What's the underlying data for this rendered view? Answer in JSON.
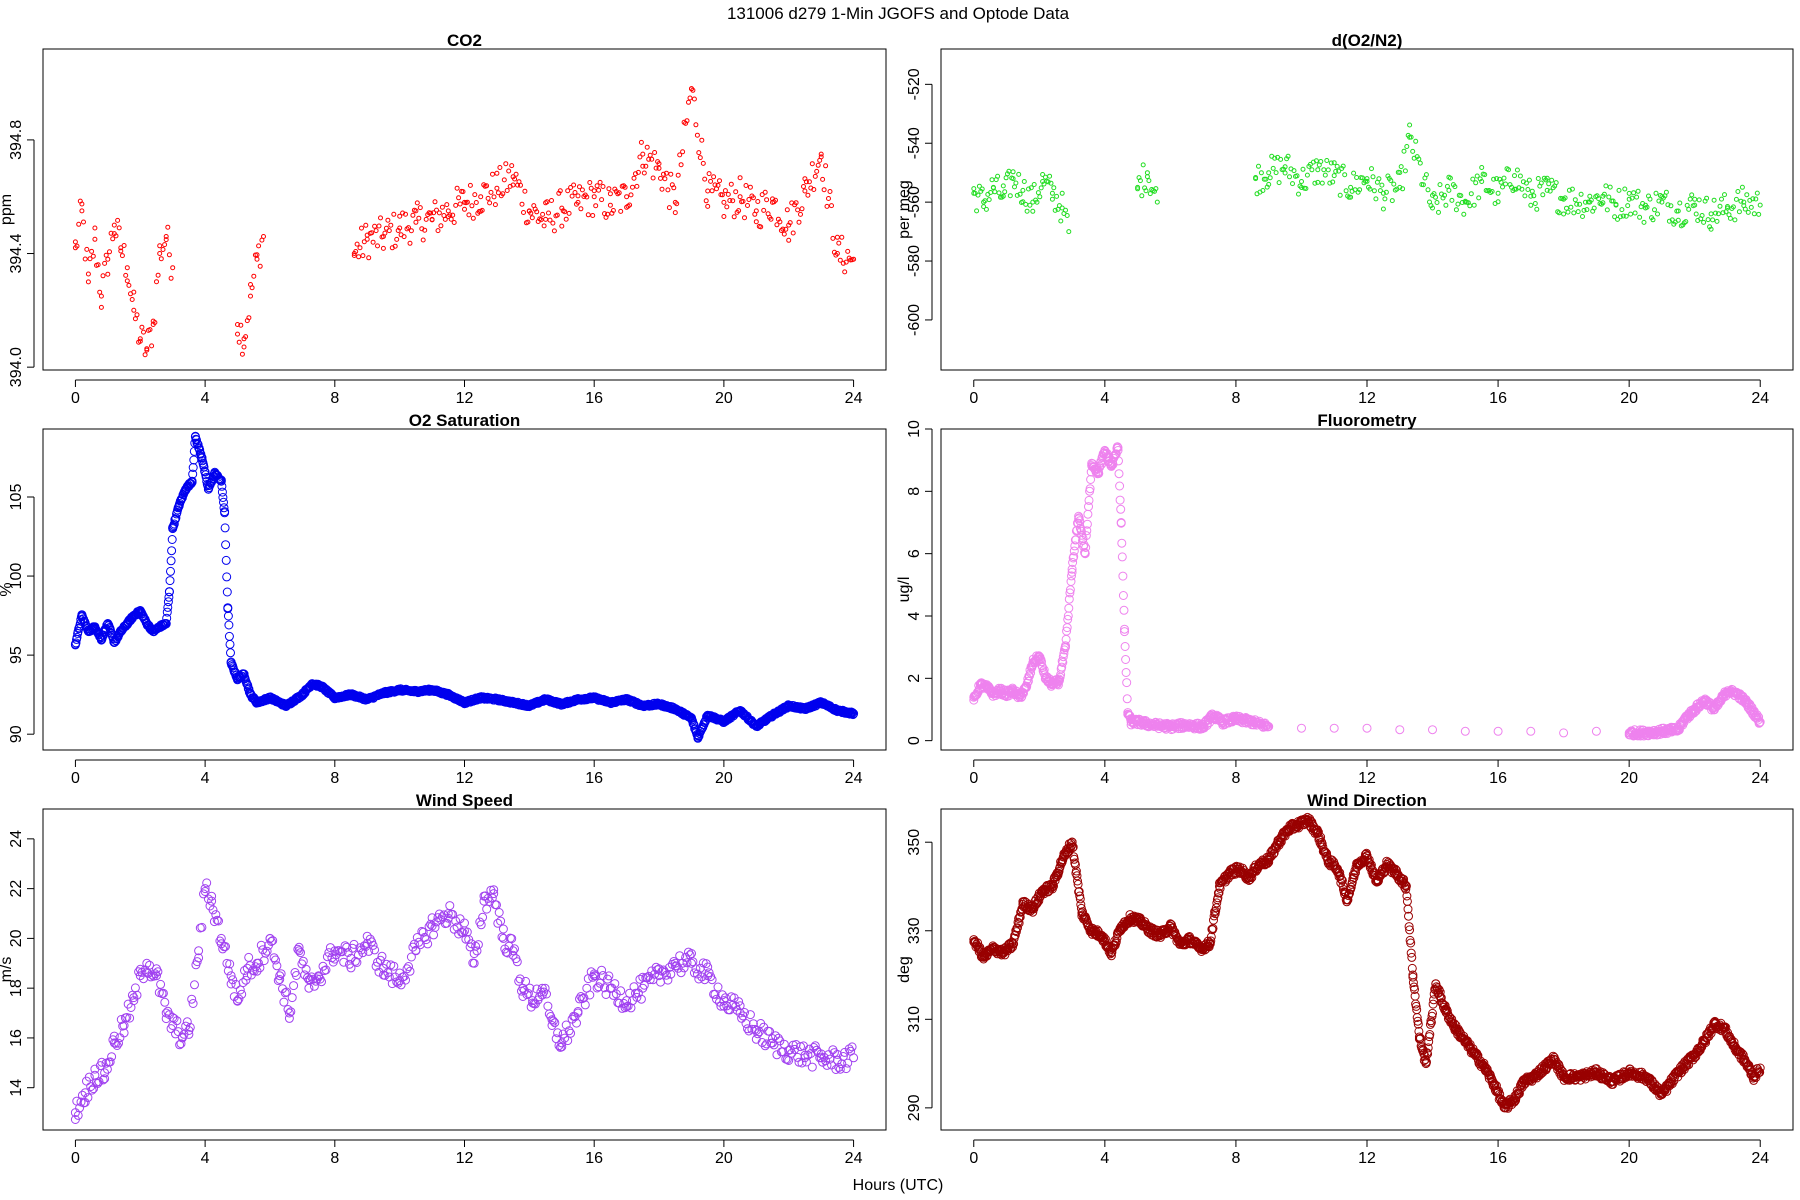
{
  "figure_title": "131006   d279   1-Min  JGOFS and Optode Data",
  "x_label": "Hours (UTC)",
  "chart_data": [
    {
      "id": "co2",
      "type": "scatter",
      "title": "CO2",
      "ylabel": "ppm",
      "color": "#ff0000",
      "xlim": [
        -1,
        25
      ],
      "ylim": [
        393.99,
        395.12
      ],
      "x_ticks": [
        0,
        4,
        8,
        12,
        16,
        20,
        24
      ],
      "y_ticks": [
        394.0,
        394.4,
        394.8
      ],
      "y_tick_labels": [
        "394.0",
        "394.4",
        "394.8"
      ],
      "series": [
        {
          "name": "CO2",
          "x": [
            0.0,
            0.2,
            0.4,
            0.6,
            0.8,
            1.0,
            1.2,
            1.4,
            1.6,
            1.8,
            2.0,
            2.2,
            2.4,
            2.6,
            2.8,
            3.0,
            5.0,
            5.2,
            5.4,
            5.6,
            5.8,
            8.6,
            9.0,
            9.5,
            10.0,
            10.5,
            11.0,
            11.5,
            12.0,
            12.5,
            13.0,
            13.5,
            14.0,
            14.5,
            15.0,
            15.5,
            16.0,
            16.5,
            17.0,
            17.5,
            18.0,
            18.5,
            19.0,
            19.5,
            20.0,
            20.5,
            21.0,
            21.5,
            22.0,
            22.5,
            23.0,
            23.5,
            24.0
          ],
          "y": [
            394.42,
            394.55,
            394.3,
            394.45,
            394.25,
            394.38,
            394.5,
            394.42,
            394.35,
            394.2,
            394.1,
            394.06,
            394.15,
            394.4,
            394.46,
            394.35,
            394.15,
            394.1,
            394.25,
            394.38,
            394.46,
            394.4,
            394.45,
            394.46,
            394.49,
            394.51,
            394.52,
            394.55,
            394.58,
            394.6,
            394.63,
            394.67,
            394.55,
            394.52,
            394.56,
            394.58,
            394.6,
            394.57,
            394.6,
            394.75,
            394.7,
            394.58,
            394.98,
            394.62,
            394.58,
            394.6,
            394.55,
            394.58,
            394.5,
            394.62,
            394.75,
            394.4,
            394.38
          ]
        }
      ]
    },
    {
      "id": "do2n2",
      "type": "scatter",
      "title": "d(O2/N2)",
      "ylabel": "per meg",
      "color": "#22dd22",
      "xlim": [
        -1,
        25
      ],
      "ylim": [
        -617,
        -508
      ],
      "x_ticks": [
        0,
        4,
        8,
        12,
        16,
        20,
        24
      ],
      "y_ticks": [
        -520,
        -540,
        -560,
        -580,
        -600
      ],
      "y_tick_labels": [
        "-520",
        "-540",
        "-560",
        "-580",
        "-600"
      ],
      "series": [
        {
          "name": "d(O2/N2)",
          "x": [
            0.0,
            0.3,
            0.6,
            0.9,
            1.2,
            1.5,
            1.8,
            2.1,
            2.4,
            2.7,
            2.9,
            5.0,
            5.3,
            5.6,
            8.6,
            9.0,
            9.5,
            10.0,
            10.5,
            11.0,
            11.5,
            12.0,
            12.5,
            13.0,
            13.3,
            14.0,
            14.5,
            15.0,
            15.5,
            16.0,
            16.5,
            17.0,
            17.5,
            18.0,
            18.8,
            19.2,
            19.6,
            20.0,
            20.5,
            21.0,
            21.5,
            22.0,
            22.5,
            23.0,
            23.5,
            24.0
          ],
          "y": [
            -557,
            -560,
            -555,
            -558,
            -552,
            -556,
            -560,
            -553,
            -557,
            -562,
            -570,
            -555,
            -550,
            -560,
            -552,
            -550,
            -548,
            -553,
            -549,
            -551,
            -555,
            -552,
            -557,
            -555,
            -538,
            -562,
            -556,
            -560,
            -553,
            -557,
            -551,
            -558,
            -556,
            -559,
            -560,
            -558,
            -561,
            -559,
            -562,
            -560,
            -563,
            -561,
            -564,
            -562,
            -560,
            -561
          ]
        }
      ]
    },
    {
      "id": "o2sat",
      "type": "scatter",
      "title": "O2 Saturation",
      "ylabel": "%",
      "color": "#0000ee",
      "xlim": [
        -1,
        25
      ],
      "ylim": [
        89.0,
        109.3
      ],
      "x_ticks": [
        0,
        4,
        8,
        12,
        16,
        20,
        24
      ],
      "y_ticks": [
        90,
        95,
        100,
        105
      ],
      "y_tick_labels": [
        "90",
        "95",
        "100",
        "105"
      ],
      "series": [
        {
          "name": "O2 Saturation",
          "x": [
            0.0,
            0.2,
            0.4,
            0.6,
            0.8,
            1.0,
            1.2,
            1.4,
            1.6,
            1.8,
            2.0,
            2.2,
            2.4,
            2.6,
            2.8,
            2.9,
            3.0,
            3.2,
            3.4,
            3.6,
            3.7,
            3.9,
            4.1,
            4.3,
            4.5,
            4.6,
            4.7,
            4.8,
            5.0,
            5.2,
            5.4,
            5.6,
            6.0,
            6.5,
            7.0,
            7.3,
            7.6,
            8.0,
            8.5,
            9.0,
            9.5,
            10.0,
            10.5,
            11.0,
            11.5,
            12.0,
            12.5,
            13.0,
            13.5,
            14.0,
            14.5,
            15.0,
            15.5,
            16.0,
            16.5,
            17.0,
            17.5,
            18.0,
            18.5,
            19.0,
            19.2,
            19.5,
            20.0,
            20.5,
            21.0,
            21.5,
            22.0,
            22.5,
            23.0,
            23.5,
            24.0
          ],
          "y": [
            95.7,
            97.5,
            96.5,
            96.8,
            96.0,
            97.0,
            95.8,
            96.5,
            97.0,
            97.5,
            97.8,
            97.0,
            96.5,
            96.8,
            97.0,
            99.0,
            103.0,
            104.5,
            105.5,
            106.0,
            108.8,
            107.5,
            105.5,
            106.5,
            106.0,
            104.0,
            98.0,
            94.5,
            93.5,
            93.8,
            92.5,
            92.0,
            92.3,
            91.8,
            92.5,
            93.2,
            93.0,
            92.3,
            92.5,
            92.2,
            92.6,
            92.8,
            92.7,
            92.8,
            92.5,
            92.0,
            92.3,
            92.2,
            92.0,
            91.8,
            92.2,
            91.9,
            92.2,
            92.3,
            92.0,
            92.2,
            91.8,
            91.9,
            91.6,
            91.0,
            89.8,
            91.2,
            90.8,
            91.5,
            90.5,
            91.2,
            91.8,
            91.6,
            92.0,
            91.5,
            91.3
          ]
        }
      ]
    },
    {
      "id": "fluor",
      "type": "scatter",
      "title": "Fluorometry",
      "ylabel": "ug/l",
      "color": "#ee82ee",
      "xlim": [
        -1,
        25
      ],
      "ylim": [
        -0.3,
        10.0
      ],
      "x_ticks": [
        0,
        4,
        8,
        12,
        16,
        20,
        24
      ],
      "y_ticks": [
        0,
        2,
        4,
        6,
        8,
        10
      ],
      "y_tick_labels": [
        "0",
        "2",
        "4",
        "6",
        "8",
        "10"
      ],
      "series": [
        {
          "name": "Fluorometry",
          "x": [
            0.0,
            0.2,
            0.4,
            0.6,
            0.8,
            1.0,
            1.2,
            1.4,
            1.6,
            1.8,
            2.0,
            2.2,
            2.4,
            2.6,
            2.8,
            3.0,
            3.2,
            3.4,
            3.6,
            3.8,
            4.0,
            4.2,
            4.4,
            4.5,
            4.6,
            4.7,
            4.8,
            5.0,
            5.5,
            6.0,
            6.5,
            7.0,
            7.3,
            7.6,
            8.0,
            8.5,
            9.0,
            10.0,
            11.0,
            12.0,
            13.0,
            14.0,
            15.0,
            16.0,
            17.0,
            18.0,
            19.0,
            20.0,
            20.5,
            21.0,
            21.5,
            21.7,
            22.0,
            22.3,
            22.6,
            23.0,
            23.3,
            23.6,
            23.8,
            24.0
          ],
          "y": [
            1.3,
            1.8,
            1.7,
            1.5,
            1.6,
            1.5,
            1.6,
            1.4,
            1.7,
            2.5,
            2.7,
            2.0,
            1.8,
            1.9,
            3.0,
            5.5,
            7.2,
            6.0,
            8.9,
            8.6,
            9.3,
            8.8,
            9.4,
            7.0,
            3.5,
            0.9,
            0.6,
            0.6,
            0.5,
            0.45,
            0.5,
            0.45,
            0.8,
            0.6,
            0.7,
            0.6,
            0.45,
            0.4,
            0.4,
            0.4,
            0.35,
            0.35,
            0.3,
            0.3,
            0.3,
            0.25,
            0.3,
            0.25,
            0.25,
            0.3,
            0.35,
            0.7,
            1.0,
            1.3,
            1.0,
            1.6,
            1.5,
            1.2,
            0.9,
            0.6
          ]
        }
      ]
    },
    {
      "id": "wspd",
      "type": "scatter",
      "title": "Wind Speed",
      "ylabel": "m/s",
      "color": "#a040f0",
      "xlim": [
        -1,
        25
      ],
      "ylim": [
        12.3,
        25.2
      ],
      "x_ticks": [
        0,
        4,
        8,
        12,
        16,
        20,
        24
      ],
      "y_ticks": [
        14,
        16,
        18,
        20,
        22,
        24
      ],
      "y_tick_labels": [
        "14",
        "16",
        "18",
        "20",
        "22",
        "24"
      ],
      "series": [
        {
          "name": "Wind Speed",
          "x": [
            0.0,
            0.3,
            0.6,
            0.9,
            1.2,
            1.5,
            1.8,
            2.0,
            2.2,
            2.5,
            2.8,
            3.0,
            3.3,
            3.5,
            3.8,
            4.0,
            4.2,
            4.5,
            4.8,
            5.0,
            5.3,
            5.6,
            6.0,
            6.3,
            6.6,
            6.9,
            7.2,
            7.5,
            8.0,
            8.5,
            9.0,
            9.5,
            10.0,
            10.5,
            11.0,
            11.5,
            12.0,
            12.3,
            12.6,
            12.9,
            13.2,
            13.5,
            13.8,
            14.1,
            14.4,
            14.7,
            15.0,
            15.5,
            16.0,
            16.5,
            17.0,
            17.5,
            18.0,
            18.5,
            19.0,
            19.5,
            20.0,
            20.5,
            21.0,
            21.5,
            22.0,
            22.5,
            23.0,
            23.5,
            24.0
          ],
          "y": [
            13.0,
            13.8,
            14.5,
            14.6,
            15.8,
            16.5,
            17.5,
            18.5,
            19.0,
            18.5,
            17.0,
            16.5,
            16.0,
            16.3,
            19.5,
            22.0,
            21.5,
            20.0,
            18.5,
            17.5,
            18.8,
            19.0,
            20.0,
            18.5,
            17.0,
            19.5,
            18.0,
            18.5,
            19.5,
            19.2,
            19.8,
            18.8,
            18.3,
            19.5,
            20.5,
            21.0,
            20.3,
            19.0,
            21.5,
            21.8,
            20.0,
            19.5,
            18.0,
            17.5,
            18.0,
            16.5,
            15.8,
            17.0,
            18.5,
            18.0,
            17.5,
            18.0,
            18.5,
            19.0,
            19.0,
            18.5,
            17.5,
            17.0,
            16.3,
            15.8,
            15.5,
            15.3,
            15.2,
            15.1,
            15.2
          ]
        }
      ]
    },
    {
      "id": "wdir",
      "type": "scatter",
      "title": "Wind Direction",
      "ylabel": "deg",
      "color": "#990000",
      "xlim": [
        -1,
        25
      ],
      "ylim": [
        285.0,
        357.5
      ],
      "x_ticks": [
        0,
        4,
        8,
        12,
        16,
        20,
        24
      ],
      "y_ticks": [
        290,
        310,
        330,
        350
      ],
      "y_tick_labels": [
        "290",
        "310",
        "330",
        "350"
      ],
      "series": [
        {
          "name": "Wind Direction",
          "x": [
            0.0,
            0.3,
            0.6,
            0.9,
            1.2,
            1.5,
            1.8,
            2.1,
            2.4,
            2.7,
            3.0,
            3.3,
            3.6,
            3.9,
            4.2,
            4.5,
            4.8,
            5.1,
            5.4,
            5.7,
            6.0,
            6.3,
            6.6,
            6.9,
            7.2,
            7.5,
            7.8,
            8.1,
            8.4,
            8.7,
            9.0,
            9.3,
            9.6,
            9.9,
            10.2,
            10.5,
            10.8,
            11.1,
            11.4,
            11.7,
            12.0,
            12.3,
            12.6,
            12.9,
            13.2,
            13.4,
            13.6,
            13.8,
            14.1,
            14.4,
            14.7,
            15.0,
            15.3,
            15.6,
            15.9,
            16.2,
            16.5,
            16.8,
            17.1,
            17.4,
            17.7,
            18.0,
            18.5,
            19.0,
            19.5,
            20.0,
            20.5,
            21.0,
            21.5,
            22.0,
            22.3,
            22.6,
            22.9,
            23.2,
            23.5,
            23.8,
            24.0
          ],
          "y": [
            328,
            324,
            326,
            325,
            327,
            336,
            335,
            339,
            340,
            346,
            350,
            334,
            330,
            329,
            325,
            331,
            333,
            332,
            330,
            329,
            331,
            327,
            328,
            326,
            327,
            340,
            343,
            344,
            342,
            345,
            346,
            350,
            353,
            354,
            355,
            352,
            346,
            344,
            337,
            345,
            347,
            341,
            345,
            343,
            340,
            320,
            306,
            300,
            318,
            312,
            308,
            305,
            302,
            299,
            295,
            290,
            292,
            296,
            297,
            299,
            301,
            297,
            297,
            298,
            296,
            298,
            297,
            293,
            298,
            302,
            305,
            309,
            308,
            304,
            301,
            297,
            299
          ]
        }
      ]
    }
  ]
}
